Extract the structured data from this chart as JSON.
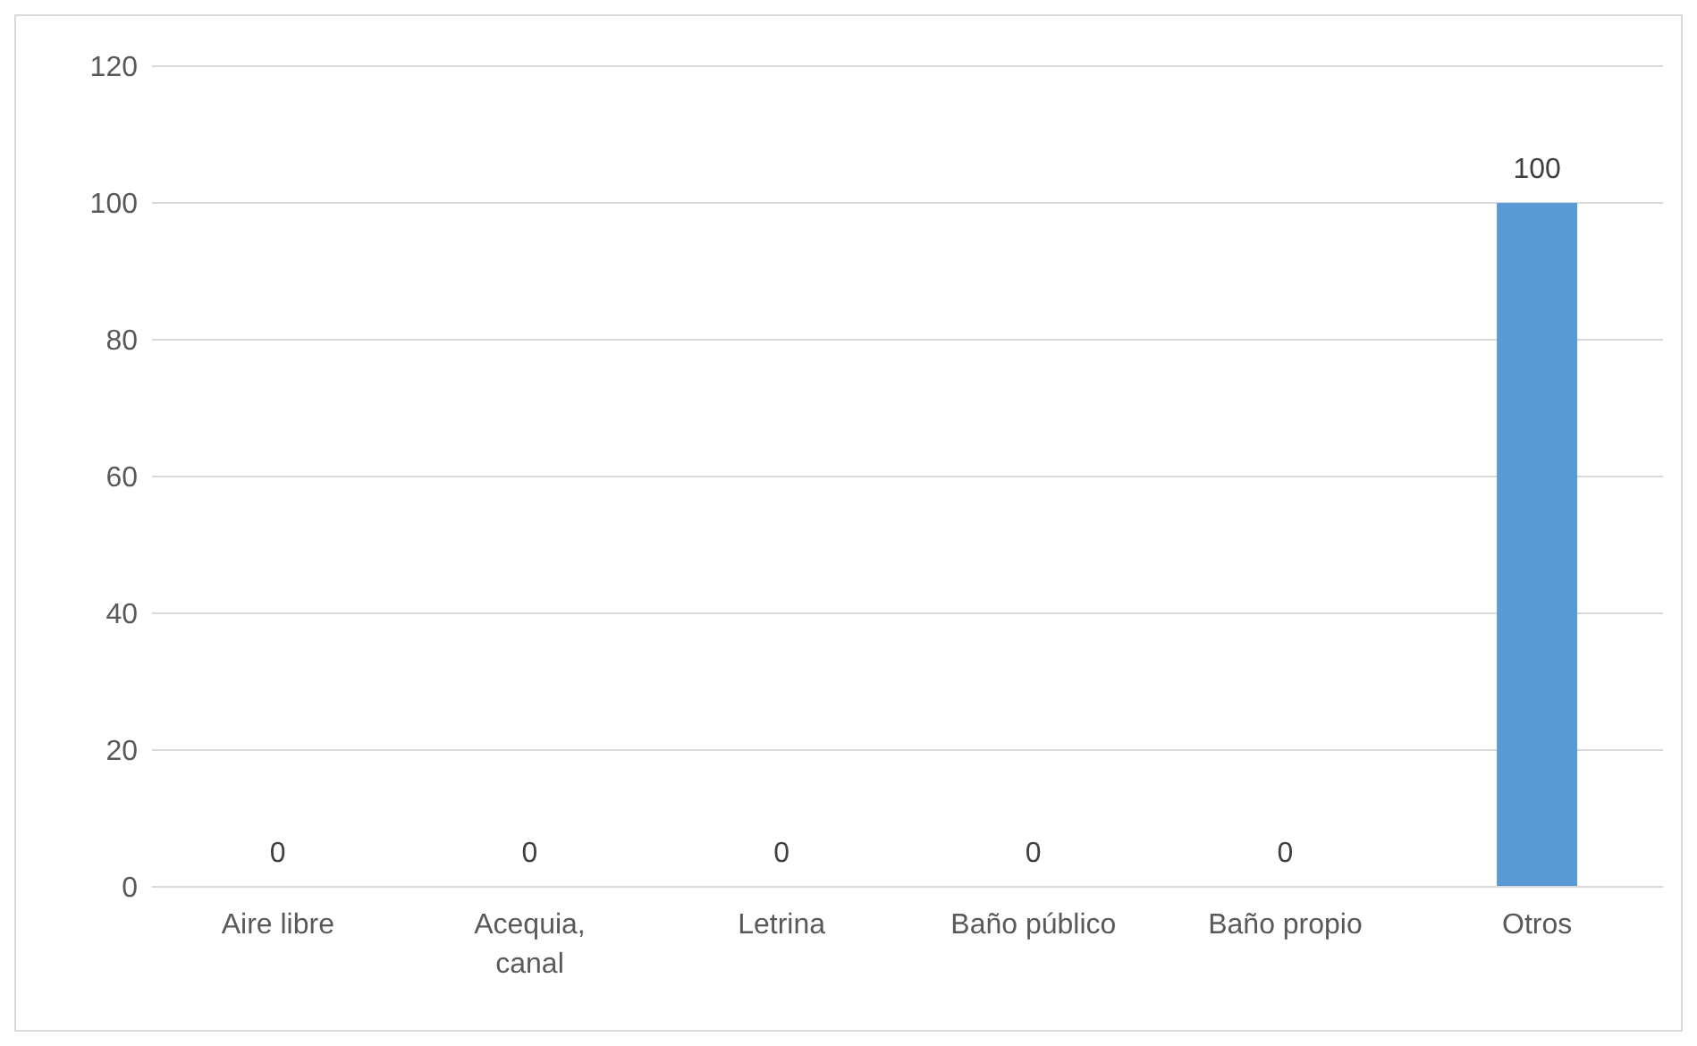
{
  "chart_data": {
    "type": "bar",
    "categories": [
      "Aire libre",
      "Acequia, canal",
      "Letrina",
      "Baño público",
      "Baño propio",
      "Otros"
    ],
    "values": [
      0,
      0,
      0,
      0,
      0,
      100
    ],
    "color": "#5b9bd5",
    "ylim": [
      0,
      120
    ],
    "yticks": [
      0,
      20,
      40,
      60,
      80,
      100,
      120
    ],
    "grid": "y",
    "data_labels": true
  }
}
